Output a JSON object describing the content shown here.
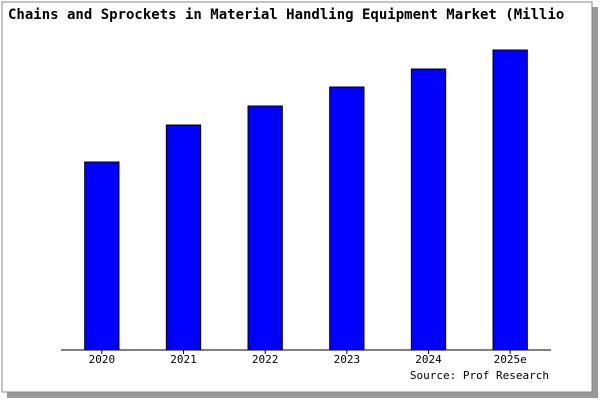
{
  "chart_data": {
    "type": "bar",
    "title": "Chains and Sprockets in Material Handling Equipment Market (Millio",
    "categories": [
      "2020",
      "2021",
      "2022",
      "2023",
      "2024",
      "2025e"
    ],
    "values": [
      188,
      225,
      244,
      263,
      281,
      300
    ],
    "color": "#0000ff",
    "ylim": [
      0,
      300
    ],
    "source": "Source: Prof Research"
  }
}
